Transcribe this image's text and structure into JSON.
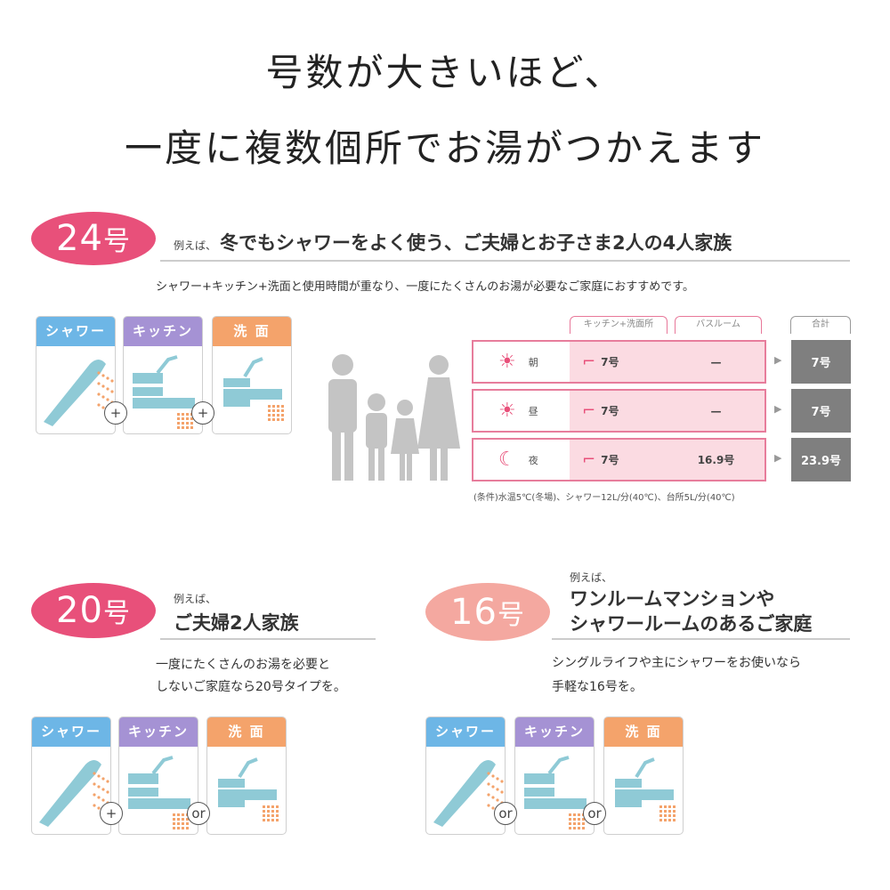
{
  "title": {
    "line1": "号数が大きいほど、",
    "line2": "一度に複数個所でお湯がつかえます"
  },
  "colors": {
    "pink": "#e8507a",
    "salmon": "#f4a8a0",
    "shower": "#6db6e6",
    "kitchen": "#a592d4",
    "washbasin": "#f4a36b",
    "fixture": "#8fcad6"
  },
  "labels": {
    "shower": "シャワー",
    "kitchen": "キッチン",
    "washbasin": "洗 面",
    "plus": "+",
    "or": "or"
  },
  "s24": {
    "num": "24",
    "unit": "号",
    "example": "例えば、",
    "heading": "冬でもシャワーをよく使う、ご夫婦とお子さま2人の4人家族",
    "desc": "シャワー+キッチン+洗面と使用時間が重なり、一度にたくさんのお湯が必要なご家庭におすすめです。",
    "table": {
      "headers": [
        "キッチン+洗面所",
        "バスルーム",
        "合計"
      ],
      "rows": [
        {
          "time": "朝",
          "icon": "sunrise-icon",
          "kitchen": "7号",
          "bath": "—",
          "total": "7号"
        },
        {
          "time": "昼",
          "icon": "sun-icon",
          "kitchen": "7号",
          "bath": "—",
          "total": "7号"
        },
        {
          "time": "夜",
          "icon": "moon-icon",
          "kitchen": "7号",
          "bath": "16.9号",
          "total": "23.9号"
        }
      ],
      "note": "(条件)水温5℃(冬場)、シャワー12L/分(40℃)、台所5L/分(40℃)"
    }
  },
  "s20": {
    "num": "20",
    "unit": "号",
    "example": "例えば、",
    "heading": "ご夫婦2人家族",
    "desc1": "一度にたくさんのお湯を必要と",
    "desc2": "しないご家庭なら20号タイプを。"
  },
  "s16": {
    "num": "16",
    "unit": "号",
    "example": "例えば、",
    "heading1": "ワンルームマンションや",
    "heading2": "シャワールームのあるご家庭",
    "desc1": "シングルライフや主にシャワーをお使いなら",
    "desc2": "手軽な16号を。"
  }
}
